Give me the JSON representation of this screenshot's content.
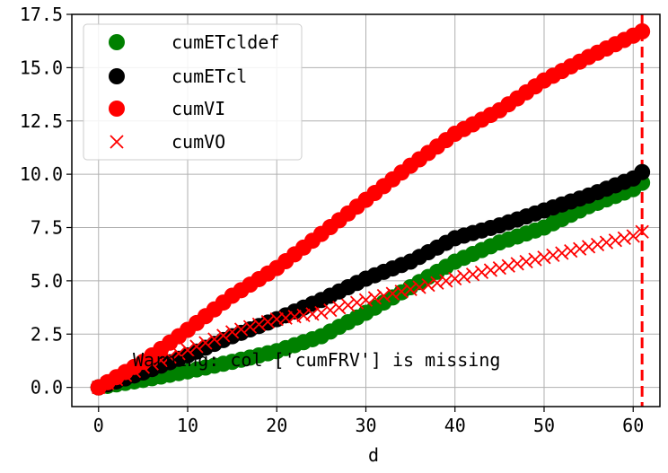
{
  "chart_data": {
    "type": "scatter",
    "xlabel": "d",
    "ylabel": "",
    "xlim": [
      -3,
      63
    ],
    "ylim": [
      -0.9,
      17.5
    ],
    "x_ticks": [
      0,
      10,
      20,
      30,
      40,
      50,
      60
    ],
    "x_tick_labels": [
      "0",
      "10",
      "20",
      "30",
      "40",
      "50",
      "60"
    ],
    "y_ticks": [
      0,
      2.5,
      5,
      7.5,
      10,
      12.5,
      15,
      17.5
    ],
    "y_tick_labels": [
      "0.0",
      "2.5",
      "5.0",
      "7.5",
      "10.0",
      "12.5",
      "15.0",
      "17.5"
    ],
    "grid": true,
    "legend_position": "top-left",
    "annotation": "Warning: col ['cumFRV'] is missing",
    "vline": {
      "x": 61,
      "color": "#ff0000",
      "style": "dashed"
    },
    "series": [
      {
        "name": "cumETcldef",
        "marker": "circle",
        "color": "#008000",
        "x": [
          0,
          5,
          10,
          15,
          20,
          25,
          30,
          35,
          40,
          45,
          50,
          55,
          60,
          61
        ],
        "y": [
          0.0,
          0.35,
          0.75,
          1.2,
          1.7,
          2.4,
          3.5,
          4.7,
          5.9,
          6.8,
          7.5,
          8.5,
          9.3,
          9.6
        ]
      },
      {
        "name": "cumETcl",
        "marker": "circle",
        "color": "#000000",
        "x": [
          0,
          5,
          10,
          15,
          20,
          25,
          30,
          35,
          40,
          45,
          50,
          55,
          60,
          61
        ],
        "y": [
          0.0,
          0.7,
          1.5,
          2.4,
          3.2,
          4.1,
          5.1,
          5.9,
          7.0,
          7.6,
          8.3,
          9.0,
          9.8,
          10.1
        ]
      },
      {
        "name": "cumVI",
        "marker": "circle",
        "color": "#ff0000",
        "x": [
          0,
          5,
          10,
          15,
          20,
          25,
          30,
          35,
          40,
          45,
          50,
          55,
          60,
          61
        ],
        "y": [
          0.0,
          1.2,
          2.7,
          4.3,
          5.6,
          7.2,
          8.8,
          10.4,
          11.9,
          13.0,
          14.4,
          15.5,
          16.5,
          16.7
        ]
      },
      {
        "name": "cumVO",
        "marker": "x",
        "color": "#ff0000",
        "x": [
          0,
          5,
          10,
          15,
          20,
          25,
          30,
          35,
          40,
          45,
          50,
          55,
          60,
          61
        ],
        "y": [
          0.0,
          0.95,
          1.75,
          2.6,
          3.2,
          3.5,
          4.1,
          4.6,
          5.1,
          5.6,
          6.1,
          6.6,
          7.1,
          7.3
        ]
      }
    ]
  }
}
